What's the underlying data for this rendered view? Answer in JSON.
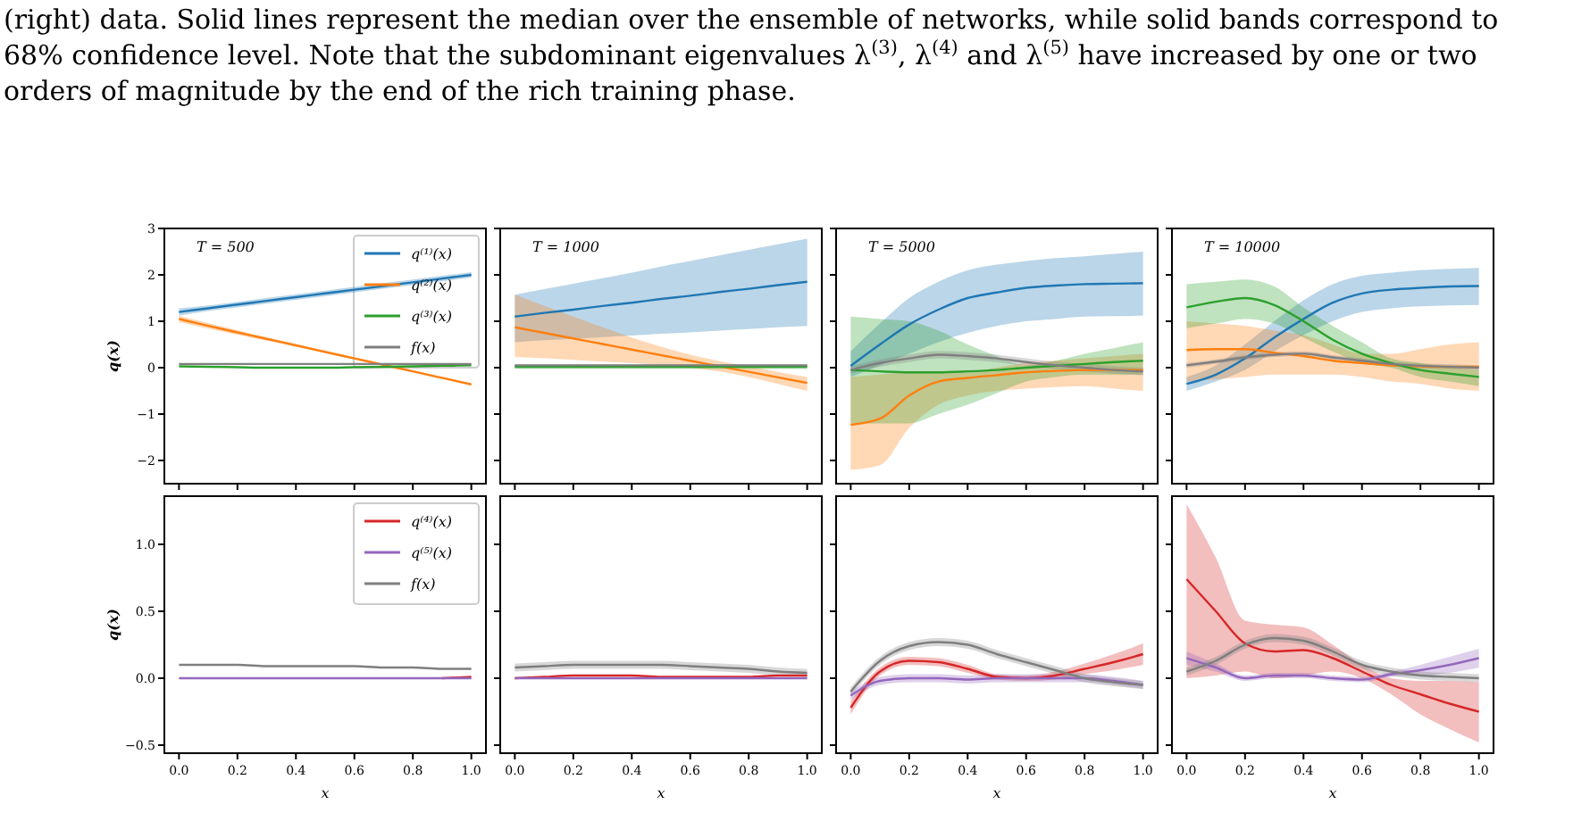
{
  "chart_data": [
    {
      "type": "line",
      "title": "T = 500",
      "annotations": [
        "(right) data. Solid lines represent the median over the ensemble of networks, while solid bands correspond to",
        "68% confidence level. Note that the subdominant eigenvalues λ$^{(3)}$, λ$^{(4)}$ and λ$^{(5)}$ have increased by one or two",
        "orders of magnitude by the end of the rich training phase."
      ],
      "ylabel": "q(x)",
      "legend": "top right",
      "tick_labels": "y",
      "xlim": [
        -0.05,
        1.05
      ],
      "ylim": [
        -2.5,
        3
      ],
      "xticks": [
        0,
        0.2,
        0.4,
        0.6,
        0.8,
        1
      ],
      "yticks": [
        {
          "value": -2,
          "label": "−2"
        },
        {
          "value": -1,
          "label": "−1"
        },
        0,
        1,
        2,
        3
      ],
      "x": [
        0,
        0.1,
        0.2,
        0.3,
        0.4,
        0.5,
        0.6,
        0.7,
        0.8,
        0.9,
        1
      ],
      "series": [
        {
          "name": "q⁽¹⁾(x)",
          "color": "#1f77b4",
          "values": [
            1.2,
            1.28,
            1.36,
            1.44,
            1.52,
            1.6,
            1.68,
            1.76,
            1.84,
            1.92,
            2.0
          ],
          "lower": [
            1.12,
            1.22,
            1.3,
            1.38,
            1.46,
            1.54,
            1.62,
            1.7,
            1.78,
            1.86,
            1.94
          ],
          "upper": [
            1.28,
            1.34,
            1.42,
            1.5,
            1.58,
            1.66,
            1.74,
            1.82,
            1.9,
            1.98,
            2.06
          ]
        },
        {
          "name": "q⁽²⁾(x)",
          "color": "#ff7f0e",
          "values": [
            1.05,
            0.9,
            0.76,
            0.62,
            0.48,
            0.34,
            0.2,
            0.06,
            -0.08,
            -0.22,
            -0.36
          ],
          "lower": [
            0.98,
            0.84,
            0.71,
            0.58,
            0.45,
            0.31,
            0.18,
            0.04,
            -0.1,
            -0.24,
            -0.38
          ],
          "upper": [
            1.12,
            0.96,
            0.81,
            0.66,
            0.51,
            0.37,
            0.22,
            0.08,
            -0.06,
            -0.2,
            -0.34
          ]
        },
        {
          "name": "q⁽³⁾(x)",
          "color": "#2ca02c",
          "values": [
            0.03,
            0.02,
            0.01,
            0,
            0,
            0,
            0.01,
            0.02,
            0.03,
            0.04,
            0.05
          ]
        },
        {
          "name": "f(x)",
          "color": "#7f7f7f",
          "values": [
            0.08,
            0.08,
            0.08,
            0.08,
            0.08,
            0.08,
            0.08,
            0.08,
            0.08,
            0.08,
            0.08
          ]
        }
      ]
    },
    {
      "type": "line",
      "title": "T = 1000",
      "tick_labels": false,
      "xlim": [
        -0.05,
        1.05
      ],
      "ylim": [
        -2.5,
        3
      ],
      "xticks": [
        0,
        0.2,
        0.4,
        0.6,
        0.8,
        1
      ],
      "yticks": [
        -2,
        -1,
        0,
        1,
        2,
        3
      ],
      "x": [
        0,
        0.1,
        0.2,
        0.3,
        0.4,
        0.5,
        0.6,
        0.7,
        0.8,
        0.9,
        1
      ],
      "series": [
        {
          "color": "#1f77b4",
          "values": [
            1.1,
            1.18,
            1.25,
            1.33,
            1.4,
            1.48,
            1.55,
            1.63,
            1.7,
            1.78,
            1.85
          ],
          "lower": [
            0.55,
            0.59,
            0.62,
            0.66,
            0.69,
            0.73,
            0.76,
            0.8,
            0.83,
            0.87,
            0.9
          ],
          "upper": [
            1.57,
            1.69,
            1.81,
            1.93,
            2.05,
            2.18,
            2.3,
            2.42,
            2.54,
            2.66,
            2.78
          ]
        },
        {
          "color": "#ff7f0e",
          "values": [
            0.87,
            0.75,
            0.63,
            0.51,
            0.39,
            0.27,
            0.15,
            0.03,
            -0.09,
            -0.21,
            -0.33
          ],
          "lower": [
            0.23,
            0.2,
            0.17,
            0.13,
            0.1,
            0.06,
            0,
            -0.08,
            -0.2,
            -0.35,
            -0.5
          ],
          "upper": [
            1.57,
            1.33,
            1.1,
            0.87,
            0.65,
            0.45,
            0.28,
            0.14,
            0.03,
            -0.09,
            -0.2
          ]
        },
        {
          "color": "#2ca02c",
          "values": [
            0.02,
            0.02,
            0.02,
            0.02,
            0.02,
            0.02,
            0.02,
            0.02,
            0.02,
            0.02,
            0.02
          ],
          "lower": [
            -0.03,
            -0.03,
            -0.03,
            -0.03,
            -0.03,
            -0.03,
            -0.03,
            -0.03,
            -0.03,
            -0.03,
            -0.03
          ],
          "upper": [
            0.07,
            0.07,
            0.07,
            0.07,
            0.07,
            0.07,
            0.07,
            0.07,
            0.07,
            0.07,
            0.07
          ]
        },
        {
          "color": "#7f7f7f",
          "values": [
            0.05,
            0.05,
            0.05,
            0.05,
            0.05,
            0.05,
            0.05,
            0.05,
            0.05,
            0.05,
            0.05
          ]
        }
      ]
    },
    {
      "type": "line",
      "title": "T = 5000",
      "tick_labels": false,
      "xlim": [
        -0.05,
        1.05
      ],
      "ylim": [
        -2.5,
        3
      ],
      "xticks": [
        0,
        0.2,
        0.4,
        0.6,
        0.8,
        1
      ],
      "yticks": [
        -2,
        -1,
        0,
        1,
        2,
        3
      ],
      "x": [
        0,
        0.1,
        0.2,
        0.3,
        0.4,
        0.5,
        0.6,
        0.7,
        0.8,
        0.9,
        1
      ],
      "series": [
        {
          "color": "#1f77b4",
          "values": [
            0.04,
            0.5,
            0.93,
            1.25,
            1.5,
            1.62,
            1.72,
            1.77,
            1.8,
            1.81,
            1.82
          ],
          "lower": [
            -0.2,
            0.05,
            0.3,
            0.55,
            0.75,
            0.9,
            1.0,
            1.05,
            1.1,
            1.11,
            1.12
          ],
          "upper": [
            0.35,
            0.95,
            1.5,
            1.85,
            2.1,
            2.22,
            2.3,
            2.36,
            2.4,
            2.45,
            2.5
          ]
        },
        {
          "color": "#ff7f0e",
          "values": [
            -1.23,
            -1.1,
            -0.6,
            -0.3,
            -0.22,
            -0.16,
            -0.1,
            -0.07,
            -0.05,
            -0.05,
            -0.05
          ],
          "lower": [
            -2.2,
            -2.1,
            -1.3,
            -0.8,
            -0.6,
            -0.5,
            -0.45,
            -0.42,
            -0.4,
            -0.45,
            -0.5
          ],
          "upper": [
            -0.2,
            -0.15,
            -0.1,
            -0.1,
            -0.1,
            0,
            0.1,
            0.15,
            0.2,
            0.25,
            0.3
          ]
        },
        {
          "color": "#2ca02c",
          "values": [
            -0.05,
            -0.08,
            -0.1,
            -0.1,
            -0.08,
            -0.05,
            0,
            0.04,
            0.08,
            0.12,
            0.15
          ],
          "lower": [
            -1.2,
            -1.2,
            -1.2,
            -1.0,
            -0.8,
            -0.55,
            -0.3,
            -0.2,
            -0.15,
            -0.15,
            -0.15
          ],
          "upper": [
            1.1,
            1.05,
            1.0,
            0.8,
            0.5,
            0.25,
            0.05,
            0.15,
            0.3,
            0.42,
            0.55
          ]
        },
        {
          "color": "#7f7f7f",
          "values": [
            -0.05,
            0.1,
            0.2,
            0.28,
            0.25,
            0.2,
            0.12,
            0.05,
            0,
            -0.05,
            -0.08
          ],
          "lower": [
            -0.13,
            0.02,
            0.12,
            0.2,
            0.17,
            0.12,
            0.04,
            -0.03,
            -0.08,
            -0.13,
            -0.16
          ],
          "upper": [
            0.03,
            0.18,
            0.28,
            0.36,
            0.33,
            0.28,
            0.2,
            0.13,
            0.08,
            0.03,
            0
          ]
        }
      ]
    },
    {
      "type": "line",
      "title": "T = 10000",
      "tick_labels": false,
      "xlim": [
        -0.05,
        1.05
      ],
      "ylim": [
        -2.5,
        3
      ],
      "xticks": [
        0,
        0.2,
        0.4,
        0.6,
        0.8,
        1
      ],
      "yticks": [
        -2,
        -1,
        0,
        1,
        2,
        3
      ],
      "x": [
        0,
        0.1,
        0.2,
        0.3,
        0.4,
        0.5,
        0.6,
        0.7,
        0.8,
        0.9,
        1
      ],
      "series": [
        {
          "color": "#1f77b4",
          "values": [
            -0.35,
            -0.15,
            0.2,
            0.65,
            1.05,
            1.4,
            1.6,
            1.68,
            1.72,
            1.75,
            1.76
          ],
          "lower": [
            -0.5,
            -0.3,
            -0.05,
            0.35,
            0.7,
            1.0,
            1.2,
            1.28,
            1.32,
            1.34,
            1.35
          ],
          "upper": [
            -0.2,
            0.05,
            0.5,
            1.0,
            1.45,
            1.8,
            1.98,
            2.05,
            2.1,
            2.13,
            2.15
          ]
        },
        {
          "color": "#ff7f0e",
          "values": [
            0.38,
            0.4,
            0.4,
            0.32,
            0.25,
            0.15,
            0.1,
            0.05,
            0.03,
            0.02,
            0.02
          ],
          "lower": [
            -0.3,
            -0.25,
            -0.2,
            -0.15,
            -0.15,
            -0.15,
            -0.2,
            -0.3,
            -0.35,
            -0.45,
            -0.5
          ],
          "upper": [
            1.0,
            0.95,
            0.9,
            0.8,
            0.7,
            0.5,
            0.3,
            0.3,
            0.4,
            0.5,
            0.55
          ]
        },
        {
          "color": "#2ca02c",
          "values": [
            1.3,
            1.42,
            1.5,
            1.35,
            1.0,
            0.6,
            0.3,
            0.1,
            -0.05,
            -0.13,
            -0.2
          ],
          "lower": [
            0.85,
            0.95,
            1.05,
            0.95,
            0.65,
            0.35,
            0.1,
            0,
            -0.2,
            -0.3,
            -0.4
          ],
          "upper": [
            1.8,
            1.85,
            1.9,
            1.75,
            1.3,
            0.9,
            0.55,
            0.2,
            0.1,
            0,
            -0.05
          ]
        },
        {
          "color": "#7f7f7f",
          "values": [
            0.05,
            0.13,
            0.22,
            0.28,
            0.3,
            0.22,
            0.15,
            0.08,
            0.04,
            0.02,
            0
          ],
          "lower": [
            0,
            0.08,
            0.17,
            0.23,
            0.25,
            0.17,
            0.1,
            0.03,
            -0.01,
            -0.03,
            -0.05
          ],
          "upper": [
            0.1,
            0.18,
            0.27,
            0.33,
            0.35,
            0.27,
            0.2,
            0.13,
            0.09,
            0.07,
            0.05
          ]
        }
      ]
    },
    {
      "type": "line",
      "ylabel": "q(x)",
      "xlabel": "x",
      "legend": "top right",
      "xlim": [
        -0.05,
        1.05
      ],
      "ylim": [
        -0.56,
        1.36
      ],
      "xticks": [
        {
          "value": 0,
          "label": "0.0"
        },
        {
          "value": 0.2,
          "label": "0.2"
        },
        {
          "value": 0.4,
          "label": "0.4"
        },
        {
          "value": 0.6,
          "label": "0.6"
        },
        {
          "value": 0.8,
          "label": "0.8"
        },
        {
          "value": 1,
          "label": "1.0"
        }
      ],
      "yticks": [
        {
          "value": -0.5,
          "label": "−0.5"
        },
        {
          "value": 0,
          "label": "0.0"
        },
        {
          "value": 0.5,
          "label": "0.5"
        },
        {
          "value": 1,
          "label": "1.0"
        }
      ],
      "x": [
        0,
        0.1,
        0.2,
        0.3,
        0.4,
        0.5,
        0.6,
        0.7,
        0.8,
        0.9,
        1
      ],
      "series": [
        {
          "name": "q⁽⁴⁾(x)",
          "color": "#d62728",
          "values": [
            null,
            null,
            null,
            null,
            null,
            null,
            null,
            null,
            null,
            0,
            0.01
          ]
        },
        {
          "name": "q⁽⁵⁾(x)",
          "color": "#9467bd",
          "values": [
            0,
            0,
            0,
            0,
            0,
            0,
            0,
            0,
            0,
            0,
            0
          ]
        },
        {
          "name": "f(x)",
          "color": "#7f7f7f",
          "values": [
            0.1,
            0.1,
            0.1,
            0.09,
            0.09,
            0.09,
            0.09,
            0.08,
            0.08,
            0.07,
            0.07
          ]
        }
      ]
    },
    {
      "type": "line",
      "xlabel": "x",
      "tick_labels": "x",
      "xlim": [
        -0.05,
        1.05
      ],
      "ylim": [
        -0.56,
        1.36
      ],
      "xticks": [
        {
          "value": 0,
          "label": "0.0"
        },
        {
          "value": 0.2,
          "label": "0.2"
        },
        {
          "value": 0.4,
          "label": "0.4"
        },
        {
          "value": 0.6,
          "label": "0.6"
        },
        {
          "value": 0.8,
          "label": "0.8"
        },
        {
          "value": 1,
          "label": "1.0"
        }
      ],
      "yticks": [
        -0.5,
        0,
        0.5,
        1
      ],
      "x": [
        0,
        0.1,
        0.2,
        0.3,
        0.4,
        0.5,
        0.6,
        0.7,
        0.8,
        0.9,
        1
      ],
      "series": [
        {
          "color": "#d62728",
          "values": [
            0,
            0.01,
            0.02,
            0.02,
            0.02,
            0.01,
            0.01,
            0.01,
            0.01,
            0.02,
            0.02
          ]
        },
        {
          "color": "#9467bd",
          "values": [
            0,
            0,
            0,
            0,
            0,
            0,
            0,
            0,
            0,
            0,
            0
          ]
        },
        {
          "color": "#7f7f7f",
          "values": [
            0.08,
            0.09,
            0.1,
            0.1,
            0.1,
            0.1,
            0.09,
            0.08,
            0.07,
            0.05,
            0.04
          ],
          "lower": [
            0.05,
            0.06,
            0.07,
            0.07,
            0.07,
            0.07,
            0.06,
            0.05,
            0.04,
            0.02,
            0.01
          ],
          "upper": [
            0.11,
            0.12,
            0.13,
            0.13,
            0.13,
            0.13,
            0.12,
            0.11,
            0.1,
            0.08,
            0.07
          ]
        }
      ]
    },
    {
      "type": "line",
      "xlabel": "x",
      "tick_labels": "x",
      "xlim": [
        -0.05,
        1.05
      ],
      "ylim": [
        -0.56,
        1.36
      ],
      "xticks": [
        {
          "value": 0,
          "label": "0.0"
        },
        {
          "value": 0.2,
          "label": "0.2"
        },
        {
          "value": 0.4,
          "label": "0.4"
        },
        {
          "value": 0.6,
          "label": "0.6"
        },
        {
          "value": 0.8,
          "label": "0.8"
        },
        {
          "value": 1,
          "label": "1.0"
        }
      ],
      "yticks": [
        -0.5,
        0,
        0.5,
        1
      ],
      "x": [
        0,
        0.1,
        0.2,
        0.3,
        0.4,
        0.5,
        0.6,
        0.7,
        0.8,
        0.9,
        1
      ],
      "series": [
        {
          "color": "#d62728",
          "values": [
            -0.22,
            0.05,
            0.13,
            0.12,
            0.07,
            0.01,
            0,
            0.02,
            0.07,
            0.12,
            0.18
          ],
          "lower": [
            -0.27,
            0.02,
            0.1,
            0.09,
            0.04,
            -0.01,
            -0.02,
            -0.01,
            0.03,
            0.06,
            0.1
          ],
          "upper": [
            -0.17,
            0.08,
            0.16,
            0.15,
            0.1,
            0.03,
            0.02,
            0.05,
            0.11,
            0.18,
            0.26
          ]
        },
        {
          "color": "#9467bd",
          "values": [
            -0.13,
            -0.02,
            0,
            0,
            -0.01,
            0,
            0,
            0,
            0,
            -0.02,
            -0.05
          ],
          "lower": [
            -0.16,
            -0.05,
            -0.03,
            -0.03,
            -0.04,
            -0.03,
            -0.03,
            -0.03,
            -0.03,
            -0.05,
            -0.08
          ],
          "upper": [
            -0.1,
            0.01,
            0.03,
            0.03,
            0.02,
            0.03,
            0.03,
            0.03,
            0.03,
            0.01,
            -0.02
          ]
        },
        {
          "color": "#7f7f7f",
          "values": [
            -0.1,
            0.13,
            0.24,
            0.27,
            0.25,
            0.18,
            0.12,
            0.06,
            0,
            -0.03,
            -0.05
          ],
          "lower": [
            -0.13,
            0.1,
            0.21,
            0.24,
            0.22,
            0.15,
            0.09,
            0.03,
            -0.03,
            -0.06,
            -0.08
          ],
          "upper": [
            -0.07,
            0.16,
            0.27,
            0.3,
            0.28,
            0.21,
            0.15,
            0.09,
            0.03,
            0,
            -0.02
          ]
        }
      ]
    },
    {
      "type": "line",
      "xlabel": "x",
      "tick_labels": "x",
      "xlim": [
        -0.05,
        1.05
      ],
      "ylim": [
        -0.56,
        1.36
      ],
      "xticks": [
        {
          "value": 0,
          "label": "0.0"
        },
        {
          "value": 0.2,
          "label": "0.2"
        },
        {
          "value": 0.4,
          "label": "0.4"
        },
        {
          "value": 0.6,
          "label": "0.6"
        },
        {
          "value": 0.8,
          "label": "0.8"
        },
        {
          "value": 1,
          "label": "1.0"
        }
      ],
      "yticks": [
        -0.5,
        0,
        0.5,
        1
      ],
      "x": [
        0,
        0.1,
        0.2,
        0.3,
        0.4,
        0.5,
        0.6,
        0.7,
        0.8,
        0.9,
        1
      ],
      "series": [
        {
          "color": "#d62728",
          "values": [
            0.74,
            0.5,
            0.26,
            0.2,
            0.21,
            0.15,
            0.05,
            -0.05,
            -0.12,
            -0.19,
            -0.25
          ],
          "lower": [
            0,
            0.02,
            0.05,
            0,
            0.02,
            0.05,
            0,
            -0.12,
            -0.27,
            -0.38,
            -0.48
          ],
          "upper": [
            1.3,
            0.9,
            0.43,
            0.4,
            0.38,
            0.25,
            0.1,
            0,
            -0.02,
            -0.02,
            -0.03
          ]
        },
        {
          "color": "#9467bd",
          "values": [
            0.15,
            0.08,
            0,
            0.02,
            0.02,
            0,
            -0.01,
            0.03,
            0.06,
            0.1,
            0.15
          ],
          "lower": [
            0.1,
            0.05,
            -0.02,
            0,
            0,
            -0.02,
            -0.03,
            0.01,
            0.02,
            0.04,
            0.08
          ],
          "upper": [
            0.2,
            0.11,
            0.02,
            0.04,
            0.04,
            0.02,
            0.01,
            0.05,
            0.1,
            0.16,
            0.22
          ]
        },
        {
          "color": "#7f7f7f",
          "values": [
            0.05,
            0.13,
            0.25,
            0.3,
            0.28,
            0.2,
            0.1,
            0.05,
            0.02,
            0.01,
            0
          ],
          "lower": [
            0.02,
            0.1,
            0.22,
            0.27,
            0.25,
            0.17,
            0.07,
            0.02,
            -0.01,
            -0.02,
            -0.03
          ],
          "upper": [
            0.08,
            0.16,
            0.28,
            0.33,
            0.31,
            0.23,
            0.13,
            0.08,
            0.05,
            0.04,
            0.03
          ]
        }
      ]
    }
  ]
}
